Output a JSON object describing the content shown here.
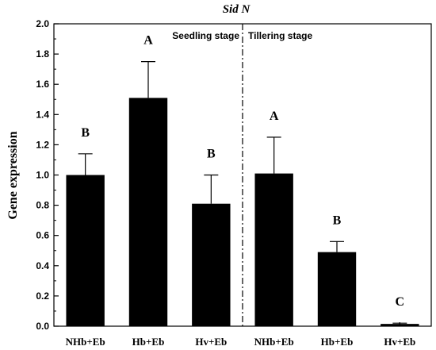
{
  "chart_data": {
    "type": "bar",
    "title": "Sid N",
    "ylabel": "Gene expression",
    "xlabel": "",
    "ylim": [
      0,
      2.0
    ],
    "yticks": [
      "0.0",
      "0.2",
      "0.4",
      "0.6",
      "0.8",
      "1.0",
      "1.2",
      "1.4",
      "1.6",
      "1.8",
      "2.0"
    ],
    "categories": [
      "NHb+Eb",
      "Hb+Eb",
      "Hv+Eb",
      "NHb+Eb",
      "Hb+Eb",
      "Hv+Eb"
    ],
    "values": [
      1.0,
      1.51,
      0.81,
      1.01,
      0.49,
      0.015
    ],
    "errors": [
      0.14,
      0.24,
      0.19,
      0.24,
      0.07,
      0.005
    ],
    "significance": [
      "B",
      "A",
      "B",
      "A",
      "B",
      "C"
    ],
    "stage_labels": [
      "Seedling stage",
      "Tillering stage"
    ],
    "bar_color": "#000000",
    "grid": false
  }
}
